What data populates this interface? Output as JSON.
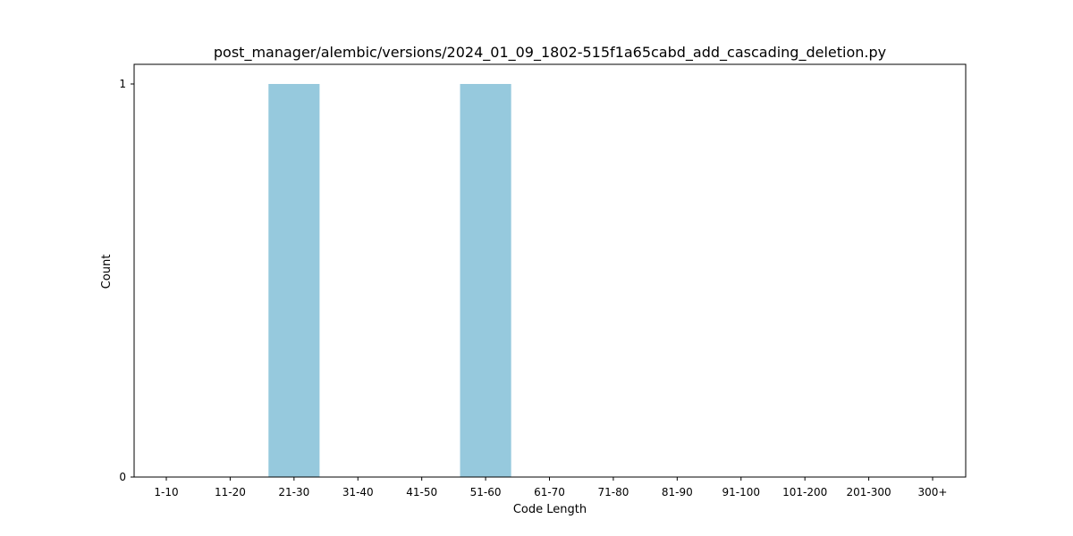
{
  "chart_data": {
    "type": "bar",
    "title": "post_manager/alembic/versions/2024_01_09_1802-515f1a65cabd_add_cascading_deletion.py",
    "xlabel": "Code Length",
    "ylabel": "Count",
    "categories": [
      "1-10",
      "11-20",
      "21-30",
      "31-40",
      "41-50",
      "51-60",
      "61-70",
      "71-80",
      "81-90",
      "91-100",
      "101-200",
      "201-300",
      "300+"
    ],
    "values": [
      0,
      0,
      1,
      0,
      0,
      1,
      0,
      0,
      0,
      0,
      0,
      0,
      0
    ],
    "ylim": [
      0,
      1
    ],
    "yticks": [
      0,
      1
    ],
    "bar_color": "#96c9dd",
    "grid": false,
    "legend": "none"
  }
}
